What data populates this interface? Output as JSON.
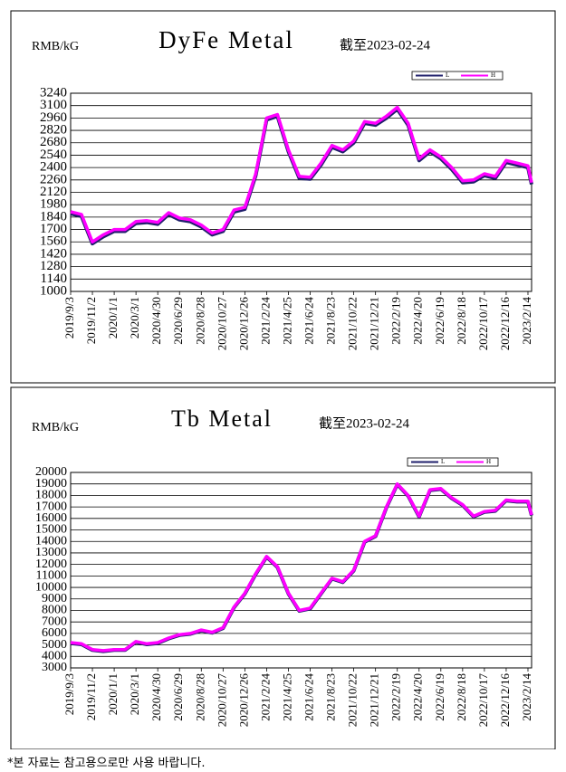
{
  "chart_data": [
    {
      "type": "line",
      "title": "DyFe Metal",
      "y_label": "RMB/kG",
      "subtitle": "截至2023-02-24",
      "x": [
        "2019/9/3",
        "2019/10/3",
        "2019/11/2",
        "2019/12/2",
        "2020/1/1",
        "2020/1/31",
        "2020/3/1",
        "2020/3/31",
        "2020/4/30",
        "2020/5/30",
        "2020/6/29",
        "2020/7/29",
        "2020/8/28",
        "2020/9/27",
        "2020/10/27",
        "2020/11/26",
        "2020/12/26",
        "2021/1/25",
        "2021/2/24",
        "2021/3/26",
        "2021/4/25",
        "2021/5/25",
        "2021/6/24",
        "2021/7/24",
        "2021/8/23",
        "2021/9/22",
        "2021/10/22",
        "2021/11/21",
        "2021/12/21",
        "2022/1/20",
        "2022/2/19",
        "2022/3/21",
        "2022/4/20",
        "2022/5/20",
        "2022/6/19",
        "2022/7/19",
        "2022/8/18",
        "2022/9/17",
        "2022/10/17",
        "2022/11/16",
        "2022/12/16",
        "2023/1/15",
        "2023/2/14",
        "2023/2/24"
      ],
      "series": [
        {
          "name": "L",
          "color": "#1f1f6b",
          "values": [
            1880,
            1850,
            1540,
            1620,
            1680,
            1680,
            1770,
            1780,
            1760,
            1870,
            1810,
            1790,
            1730,
            1640,
            1680,
            1900,
            1930,
            2310,
            2940,
            2980,
            2580,
            2280,
            2270,
            2430,
            2630,
            2580,
            2680,
            2900,
            2880,
            2960,
            3060,
            2880,
            2480,
            2580,
            2500,
            2380,
            2230,
            2240,
            2310,
            2280,
            2460,
            2430,
            2400,
            2210
          ]
        },
        {
          "name": "H",
          "color": "#ff00ff",
          "values": [
            1900,
            1870,
            1560,
            1640,
            1700,
            1700,
            1790,
            1800,
            1780,
            1890,
            1830,
            1810,
            1750,
            1660,
            1700,
            1920,
            1950,
            2330,
            2960,
            3000,
            2600,
            2300,
            2290,
            2450,
            2650,
            2600,
            2700,
            2920,
            2900,
            2980,
            3080,
            2900,
            2500,
            2600,
            2520,
            2400,
            2250,
            2260,
            2330,
            2300,
            2480,
            2450,
            2420,
            2230
          ]
        }
      ],
      "xlim": [
        "2019/9/3",
        "2023/2/24"
      ],
      "xticks": [
        "2019/9/3",
        "2019/11/2",
        "2020/1/1",
        "2020/3/1",
        "2020/4/30",
        "2020/6/29",
        "2020/8/28",
        "2020/10/27",
        "2020/12/26",
        "2021/2/24",
        "2021/4/25",
        "2021/6/24",
        "2021/8/23",
        "2021/10/22",
        "2021/12/21",
        "2022/2/19",
        "2022/4/20",
        "2022/6/19",
        "2022/8/18",
        "2022/10/17",
        "2022/12/16",
        "2023/2/14"
      ],
      "ylim": [
        1000,
        3240
      ],
      "yticks": [
        1000,
        1140,
        1280,
        1420,
        1560,
        1700,
        1840,
        1980,
        2120,
        2260,
        2400,
        2540,
        2680,
        2820,
        2960,
        3100,
        3240
      ],
      "grid": true
    },
    {
      "type": "line",
      "title": "Tb Metal",
      "y_label": "RMB/kG",
      "subtitle": "截至2023-02-24",
      "x": [
        "2019/9/3",
        "2019/10/3",
        "2019/11/2",
        "2019/12/2",
        "2020/1/1",
        "2020/1/31",
        "2020/3/1",
        "2020/3/31",
        "2020/4/30",
        "2020/5/30",
        "2020/6/29",
        "2020/7/29",
        "2020/8/28",
        "2020/9/27",
        "2020/10/27",
        "2020/11/26",
        "2020/12/26",
        "2021/1/25",
        "2021/2/24",
        "2021/3/26",
        "2021/4/25",
        "2021/5/25",
        "2021/6/24",
        "2021/7/24",
        "2021/8/23",
        "2021/9/22",
        "2021/10/22",
        "2021/11/21",
        "2021/12/21",
        "2022/1/20",
        "2022/2/19",
        "2022/3/21",
        "2022/4/20",
        "2022/5/20",
        "2022/6/19",
        "2022/7/19",
        "2022/8/18",
        "2022/9/17",
        "2022/10/17",
        "2022/11/16",
        "2022/12/16",
        "2023/1/15",
        "2023/2/14",
        "2023/2/24"
      ],
      "series": [
        {
          "name": "L",
          "color": "#1f1f6b",
          "values": [
            5150,
            5050,
            4550,
            4450,
            4550,
            4550,
            5250,
            5050,
            5150,
            5550,
            5850,
            5950,
            6250,
            6050,
            6450,
            8250,
            9450,
            11150,
            12650,
            11750,
            9450,
            7950,
            8150,
            9450,
            10750,
            10450,
            11450,
            13950,
            14450,
            16950,
            18950,
            17950,
            16150,
            18450,
            18550,
            17750,
            17150,
            16150,
            16550,
            16650,
            17550,
            17450,
            17450,
            16250
          ]
        },
        {
          "name": "H",
          "color": "#ff00ff",
          "values": [
            5200,
            5100,
            4600,
            4500,
            4600,
            4600,
            5300,
            5100,
            5200,
            5600,
            5900,
            6000,
            6300,
            6100,
            6500,
            8300,
            9500,
            11200,
            12700,
            11800,
            9500,
            8000,
            8200,
            9500,
            10800,
            10500,
            11500,
            14000,
            14500,
            17000,
            19000,
            18000,
            16200,
            18500,
            18600,
            17800,
            17200,
            16200,
            16600,
            16700,
            17600,
            17500,
            17500,
            16300
          ]
        }
      ],
      "xlim": [
        "2019/9/3",
        "2023/2/24"
      ],
      "xticks": [
        "2019/9/3",
        "2019/11/2",
        "2020/1/1",
        "2020/3/1",
        "2020/4/30",
        "2020/6/29",
        "2020/8/28",
        "2020/10/27",
        "2020/12/26",
        "2021/2/24",
        "2021/4/25",
        "2021/6/24",
        "2021/8/23",
        "2021/10/22",
        "2021/12/21",
        "2022/2/19",
        "2022/4/20",
        "2022/6/19",
        "2022/8/18",
        "2022/10/17",
        "2022/12/16",
        "2023/2/14"
      ],
      "ylim": [
        3000,
        20000
      ],
      "yticks": [
        3000,
        4000,
        5000,
        6000,
        7000,
        8000,
        9000,
        10000,
        11000,
        12000,
        13000,
        14000,
        15000,
        16000,
        17000,
        18000,
        19000,
        20000
      ],
      "grid": true
    }
  ],
  "footer": "*본 자료는 참고용으로만 사용 바랍니다."
}
